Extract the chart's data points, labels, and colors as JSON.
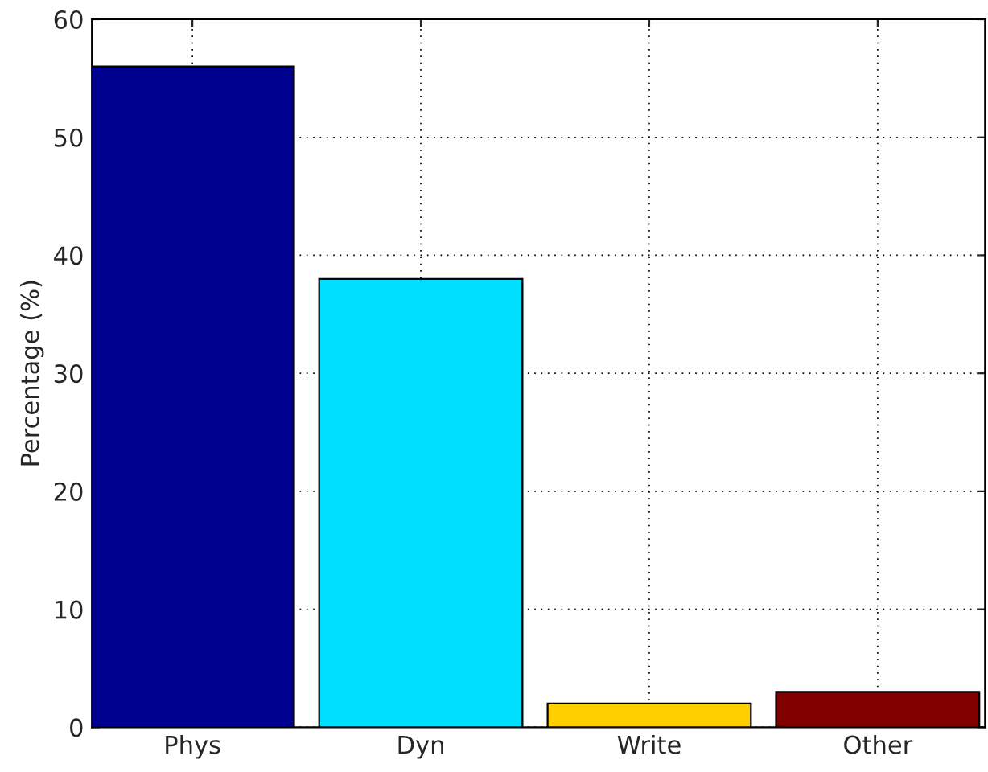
{
  "chart_data": {
    "type": "bar",
    "ylabel": "Percentage (%)",
    "categories": [
      "Phys",
      "Dyn",
      "Write",
      "Other"
    ],
    "values": [
      56,
      38,
      2,
      3
    ],
    "colors": [
      "#00008f",
      "#00dfff",
      "#ffcf00",
      "#800000"
    ],
    "ylim": [
      0,
      60
    ],
    "yticks": [
      0,
      10,
      20,
      30,
      40,
      50,
      60
    ],
    "grid": true
  }
}
